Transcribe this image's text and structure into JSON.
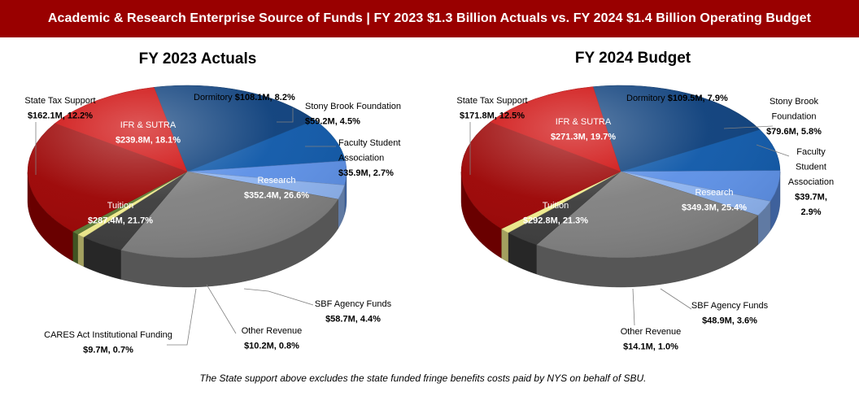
{
  "header": {
    "title": "Academic & Research Enterprise Source of Funds | FY 2023 $1.3 Billion  Actuals vs. FY 2024 $1.4 Billion  Operating Budget"
  },
  "footnote": "The State support above excludes the state funded fringe benefits costs paid by NYS on behalf of SBU.",
  "colors": {
    "banner": "#990000",
    "IFR & SUTRA": "#0a3d7a",
    "Dormitory": "#0d57a8",
    "Stony Brook Foundation": "#5b8fe6",
    "Faculty Student Association": "#8db3f0",
    "Research": "#7f7f7f",
    "SBF Agency Funds": "#3a3a3a",
    "Other Revenue": "#f0ec8c",
    "CARES Act Institutional Funding": "#5c7a32",
    "Tuition": "#9a0000",
    "State Tax Support": "#cc0000"
  },
  "chart_data": [
    {
      "type": "pie",
      "title": "FY 2023 Actuals",
      "slices": [
        {
          "name": "IFR & SUTRA",
          "amount": "$239.8M",
          "value": 18.1,
          "label_lines": [
            "IFR & SUTRA",
            "$239.8M, 18.1%"
          ]
        },
        {
          "name": "Dormitory",
          "amount": "$108.1M",
          "value": 8.2,
          "label_lines": [
            "Dormitory",
            "$108.1M, 8.2%"
          ]
        },
        {
          "name": "Stony Brook Foundation",
          "amount": "$59.2M",
          "value": 4.5,
          "label_lines": [
            "Stony Brook Foundation",
            "$59.2M, 4.5%"
          ]
        },
        {
          "name": "Faculty Student Association",
          "amount": "$35.9M",
          "value": 2.7,
          "label_lines": [
            "Faculty Student",
            "Association",
            "$35.9M, 2.7%"
          ]
        },
        {
          "name": "Research",
          "amount": "$352.4M",
          "value": 26.6,
          "label_lines": [
            "Research",
            "$352.4M, 26.6%"
          ]
        },
        {
          "name": "SBF Agency Funds",
          "amount": "$58.7M",
          "value": 4.4,
          "label_lines": [
            "SBF Agency Funds",
            "$58.7M, 4.4%"
          ]
        },
        {
          "name": "Other Revenue",
          "amount": "$10.2M",
          "value": 0.8,
          "label_lines": [
            "Other Revenue",
            "$10.2M, 0.8%"
          ]
        },
        {
          "name": "CARES Act Institutional Funding",
          "amount": "$9.7M",
          "value": 0.7,
          "label_lines": [
            "CARES Act Institutional Funding",
            "$9.7M, 0.7%"
          ]
        },
        {
          "name": "Tuition",
          "amount": "$287.4M",
          "value": 21.7,
          "label_lines": [
            "Tuition",
            "$287.4M, 21.7%"
          ]
        },
        {
          "name": "State Tax Support",
          "amount": "$162.1M",
          "value": 12.2,
          "label_lines": [
            "State Tax Support",
            "$162.1M, 12.2%"
          ]
        }
      ]
    },
    {
      "type": "pie",
      "title": "FY 2024 Budget",
      "slices": [
        {
          "name": "IFR & SUTRA",
          "amount": "$271.3M",
          "value": 19.7,
          "label_lines": [
            "IFR & SUTRA",
            "$271.3M, 19.7%"
          ]
        },
        {
          "name": "Dormitory",
          "amount": "$109.5M",
          "value": 7.9,
          "label_lines": [
            "Dormitory",
            "$109.5M, 7.9%"
          ]
        },
        {
          "name": "Stony Brook Foundation",
          "amount": "$79.6M",
          "value": 5.8,
          "label_lines": [
            "Stony Brook",
            "Foundation",
            "$79.6M, 5.8%"
          ]
        },
        {
          "name": "Faculty Student Association",
          "amount": "$39.7M",
          "value": 2.9,
          "label_lines": [
            "Faculty",
            "Student",
            "Association",
            "$39.7M,",
            "2.9%"
          ]
        },
        {
          "name": "Research",
          "amount": "$349.3M",
          "value": 25.4,
          "label_lines": [
            "Research",
            "$349.3M, 25.4%"
          ]
        },
        {
          "name": "SBF Agency Funds",
          "amount": "$48.9M",
          "value": 3.6,
          "label_lines": [
            "SBF Agency Funds",
            "$48.9M, 3.6%"
          ]
        },
        {
          "name": "Other Revenue",
          "amount": "$14.1M",
          "value": 1.0,
          "label_lines": [
            "Other Revenue",
            "$14.1M, 1.0%"
          ]
        },
        {
          "name": "Tuition",
          "amount": "$292.8M",
          "value": 21.3,
          "label_lines": [
            "Tuition",
            "$292.8M, 21.3%"
          ]
        },
        {
          "name": "State Tax Support",
          "amount": "$171.8M",
          "value": 12.5,
          "label_lines": [
            "State Tax Support",
            "$171.8M, 12.5%"
          ]
        }
      ]
    }
  ]
}
